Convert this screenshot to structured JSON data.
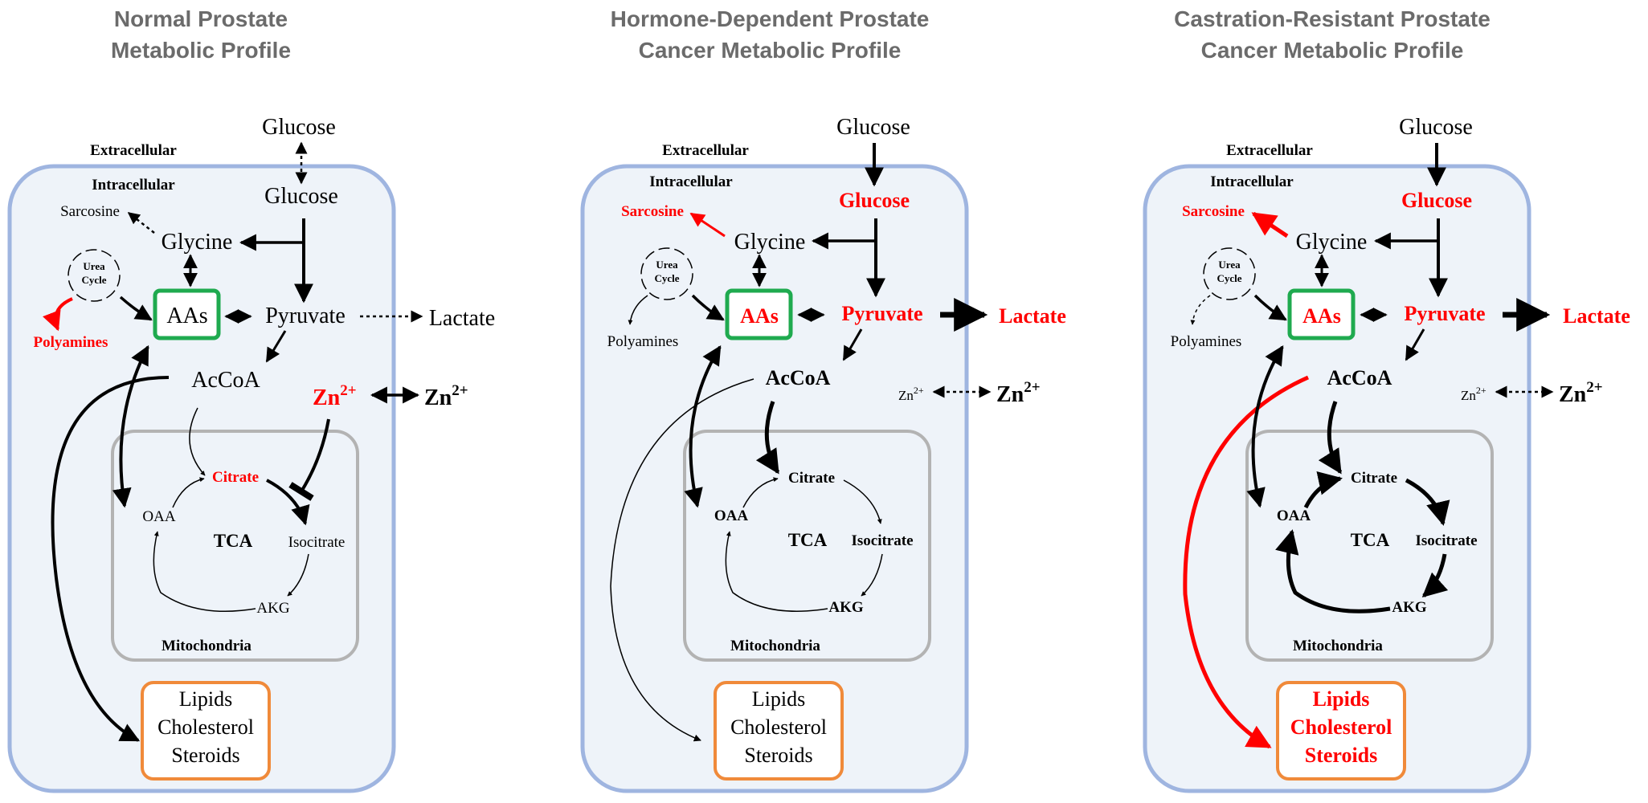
{
  "panels": [
    {
      "title_line1": "Normal Prostate",
      "title_line2": "Metabolic Profile",
      "extracellular": "Extracellular",
      "intracellular": "Intracellular",
      "glucose_out": "Glucose",
      "glucose_in": "Glucose",
      "sarcosine": "Sarcosine",
      "glycine": "Glycine",
      "urea_line1": "Urea",
      "urea_line2": "Cycle",
      "polyamines": "Polyamines",
      "aas": "AAs",
      "pyruvate": "Pyruvate",
      "lactate": "Lactate",
      "acoa": "AcCoA",
      "zn_in": "Zn",
      "zn_out": "Zn",
      "zn_sup": "2+",
      "citrate": "Citrate",
      "oaa": "OAA",
      "tca": "TCA",
      "isocitrate": "Isocitrate",
      "akg": "AKG",
      "mitochondria": "Mitochondria",
      "lipids": "Lipids",
      "cholesterol": "Cholesterol",
      "steroids": "Steroids"
    },
    {
      "title_line1": "Hormone-Dependent Prostate",
      "title_line2": "Cancer Metabolic Profile",
      "extracellular": "Extracellular",
      "intracellular": "Intracellular",
      "glucose_out": "Glucose",
      "glucose_in": "Glucose",
      "sarcosine": "Sarcosine",
      "glycine": "Glycine",
      "urea_line1": "Urea",
      "urea_line2": "Cycle",
      "polyamines": "Polyamines",
      "aas": "AAs",
      "pyruvate": "Pyruvate",
      "lactate": "Lactate",
      "acoa": "AcCoA",
      "zn_in": "Zn",
      "zn_out": "Zn",
      "zn_sup": "2+",
      "citrate": "Citrate",
      "oaa": "OAA",
      "tca": "TCA",
      "isocitrate": "Isocitrate",
      "akg": "AKG",
      "mitochondria": "Mitochondria",
      "lipids": "Lipids",
      "cholesterol": "Cholesterol",
      "steroids": "Steroids"
    },
    {
      "title_line1": "Castration-Resistant Prostate",
      "title_line2": "Cancer Metabolic Profile",
      "extracellular": "Extracellular",
      "intracellular": "Intracellular",
      "glucose_out": "Glucose",
      "glucose_in": "Glucose",
      "sarcosine": "Sarcosine",
      "glycine": "Glycine",
      "urea_line1": "Urea",
      "urea_line2": "Cycle",
      "polyamines": "Polyamines",
      "aas": "AAs",
      "pyruvate": "Pyruvate",
      "lactate": "Lactate",
      "acoa": "AcCoA",
      "zn_in": "Zn",
      "zn_out": "Zn",
      "zn_sup": "2+",
      "citrate": "Citrate",
      "oaa": "OAA",
      "tca": "TCA",
      "isocitrate": "Isocitrate",
      "akg": "AKG",
      "mitochondria": "Mitochondria",
      "lipids": "Lipids",
      "cholesterol": "Cholesterol",
      "steroids": "Steroids"
    }
  ],
  "colors": {
    "highlight": "#ff0000",
    "cell_border": "#9fb5e0",
    "cell_fill": "#eef3f9",
    "mitochondria_border": "#b3b3b3",
    "aas_border": "#1faa4f",
    "lipids_border": "#f08a3a",
    "title": "#6b6b6b"
  }
}
